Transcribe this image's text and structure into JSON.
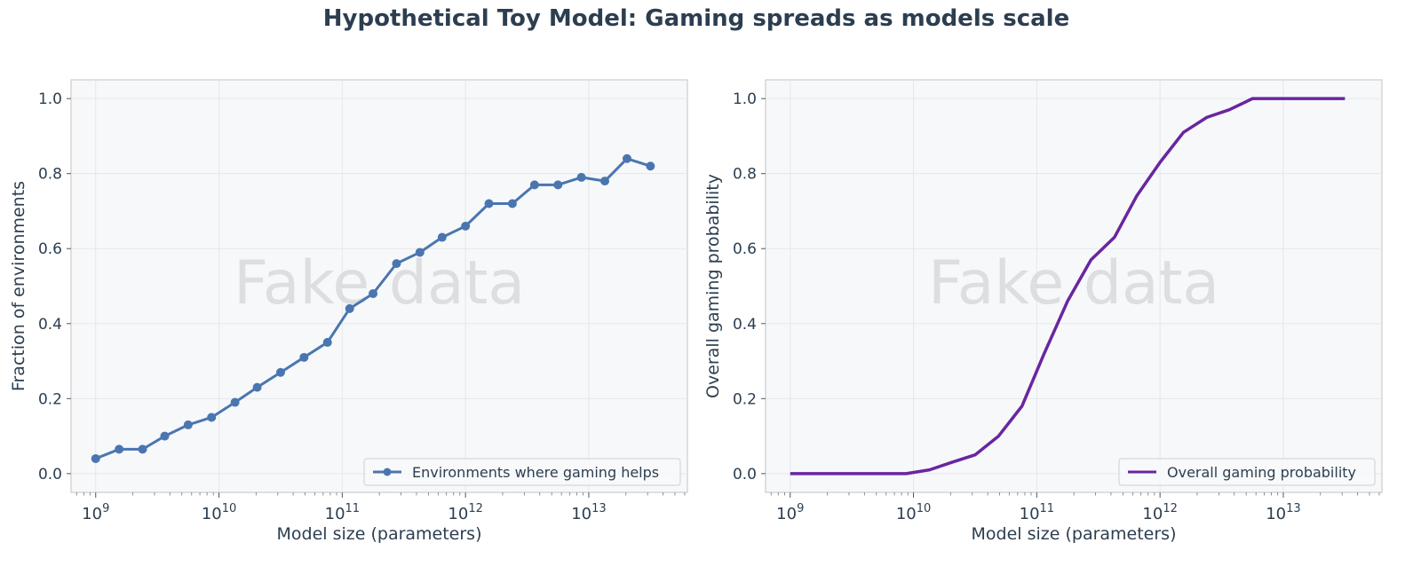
{
  "title": "Hypothetical Toy Model: Gaming spreads as models scale",
  "watermark": "Fake data",
  "chart_data": [
    {
      "type": "line",
      "title": "",
      "xlabel": "Model size (parameters)",
      "ylabel": "Fraction of environments",
      "xscale": "log",
      "xlim_exp": [
        8.8,
        13.8
      ],
      "ylim": [
        -0.05,
        1.05
      ],
      "xtick_exponents": [
        9,
        10,
        11,
        12,
        13
      ],
      "yticks": [
        "0.0",
        "0.2",
        "0.4",
        "0.6",
        "0.8",
        "1.0"
      ],
      "grid": true,
      "legend_position": "bottom-right",
      "series": [
        {
          "name": "Environments where gaming helps",
          "color": "#4a76b0",
          "marker": "circle",
          "x_exponents": [
            9.0,
            9.19,
            9.38,
            9.56,
            9.75,
            9.94,
            10.13,
            10.31,
            10.5,
            10.69,
            10.88,
            11.06,
            11.25,
            11.44,
            11.63,
            11.81,
            12.0,
            12.19,
            12.38,
            12.56,
            12.75,
            12.94,
            13.13,
            13.31,
            13.5
          ],
          "values": [
            0.04,
            0.065,
            0.065,
            0.1,
            0.13,
            0.15,
            0.19,
            0.23,
            0.27,
            0.31,
            0.35,
            0.44,
            0.48,
            0.56,
            0.59,
            0.63,
            0.66,
            0.72,
            0.72,
            0.77,
            0.77,
            0.79,
            0.78,
            0.84,
            0.82
          ]
        }
      ]
    },
    {
      "type": "line",
      "title": "",
      "xlabel": "Model size (parameters)",
      "ylabel": "Overall gaming probability",
      "xscale": "log",
      "xlim_exp": [
        8.8,
        13.8
      ],
      "ylim": [
        -0.05,
        1.05
      ],
      "xtick_exponents": [
        9,
        10,
        11,
        12,
        13
      ],
      "yticks": [
        "0.0",
        "0.2",
        "0.4",
        "0.6",
        "0.8",
        "1.0"
      ],
      "grid": true,
      "legend_position": "bottom-right",
      "series": [
        {
          "name": "Overall gaming probability",
          "color": "#6a25a0",
          "marker": "none",
          "x_exponents": [
            9.0,
            9.19,
            9.38,
            9.56,
            9.75,
            9.94,
            10.13,
            10.31,
            10.5,
            10.69,
            10.88,
            11.06,
            11.25,
            11.44,
            11.63,
            11.81,
            12.0,
            12.19,
            12.38,
            12.56,
            12.75,
            12.94,
            13.13,
            13.31,
            13.5
          ],
          "values": [
            0,
            0,
            0,
            0,
            0,
            0,
            0.01,
            0.03,
            0.05,
            0.1,
            0.18,
            0.32,
            0.46,
            0.57,
            0.63,
            0.74,
            0.83,
            0.91,
            0.95,
            0.97,
            1.0,
            1.0,
            1.0,
            1.0,
            1.0
          ]
        }
      ]
    }
  ]
}
